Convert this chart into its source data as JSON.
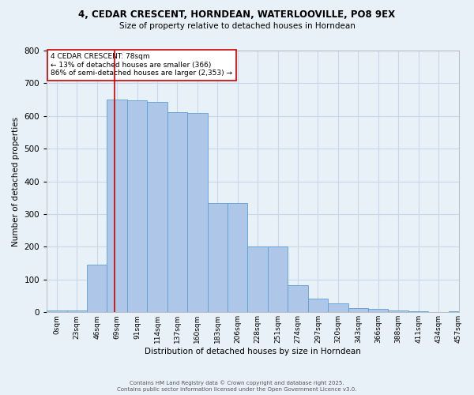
{
  "title_line1": "4, CEDAR CRESCENT, HORNDEAN, WATERLOOVILLE, PO8 9EX",
  "title_line2": "Size of property relative to detached houses in Horndean",
  "xlabel": "Distribution of detached houses by size in Horndean",
  "ylabel": "Number of detached properties",
  "bin_labels": [
    "0sqm",
    "23sqm",
    "46sqm",
    "69sqm",
    "91sqm",
    "114sqm",
    "137sqm",
    "160sqm",
    "183sqm",
    "206sqm",
    "228sqm",
    "251sqm",
    "274sqm",
    "297sqm",
    "320sqm",
    "343sqm",
    "366sqm",
    "388sqm",
    "411sqm",
    "434sqm",
    "457sqm"
  ],
  "bar_values": [
    5,
    5,
    145,
    650,
    648,
    642,
    612,
    610,
    335,
    335,
    200,
    200,
    83,
    42,
    27,
    12,
    10,
    5,
    3,
    1,
    2
  ],
  "bar_color": "#aec6e8",
  "bar_edge_color": "#5a9fd4",
  "grid_color": "#c8d8e8",
  "background_color": "#e8f0f8",
  "property_line_x": 78,
  "property_line_color": "#cc0000",
  "annotation_title": "4 CEDAR CRESCENT: 78sqm",
  "annotation_line1": "← 13% of detached houses are smaller (366)",
  "annotation_line2": "86% of semi-detached houses are larger (2,353) →",
  "annotation_box_color": "#ffffff",
  "annotation_border_color": "#cc0000",
  "ylim": [
    0,
    800
  ],
  "yticks": [
    0,
    100,
    200,
    300,
    400,
    500,
    600,
    700,
    800
  ],
  "footer_line1": "Contains HM Land Registry data © Crown copyright and database right 2025.",
  "footer_line2": "Contains public sector information licensed under the Open Government Licence v3.0.",
  "bin_width": 23,
  "bin_starts": [
    0,
    23,
    46,
    69,
    92,
    115,
    138,
    161,
    184,
    207,
    230,
    253,
    276,
    299,
    322,
    345,
    368,
    391,
    414,
    437,
    460
  ]
}
